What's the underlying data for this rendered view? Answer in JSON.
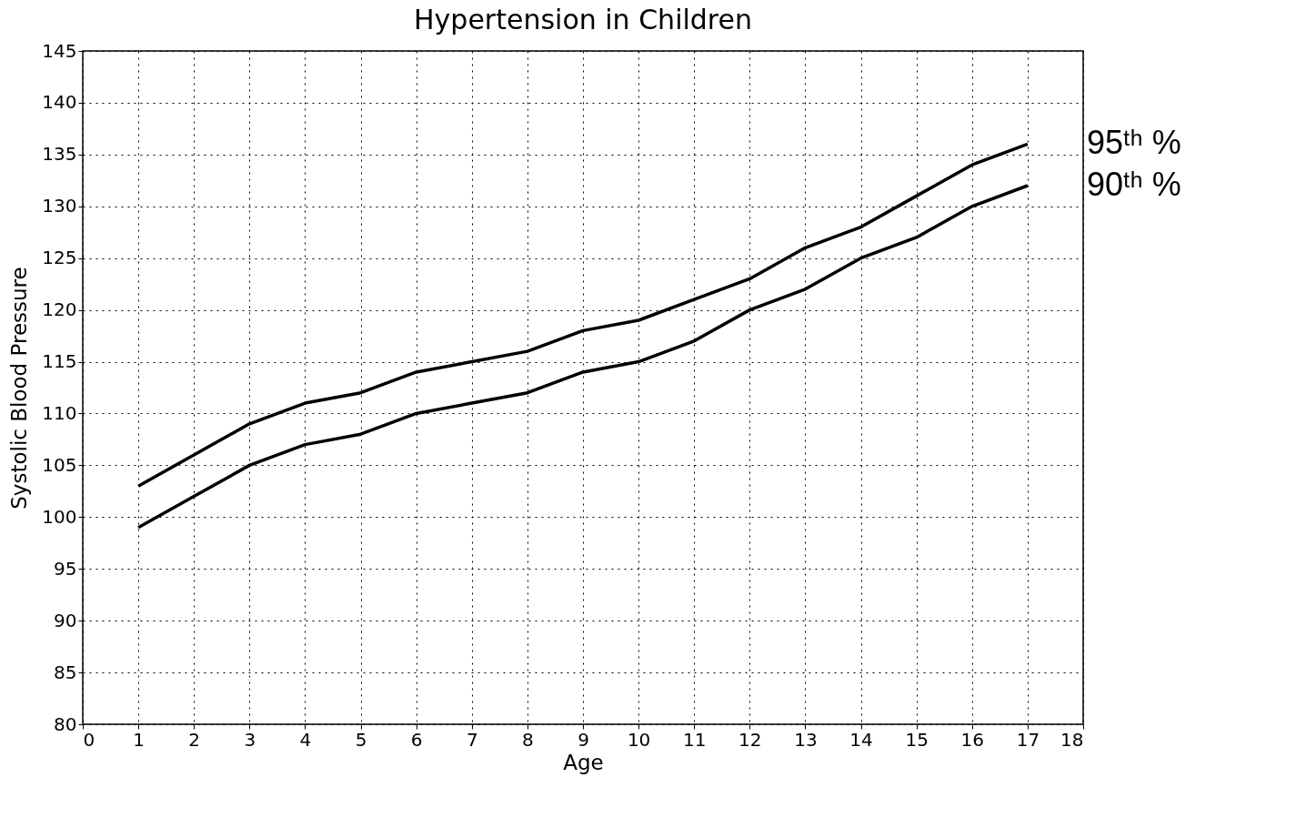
{
  "chart_data": {
    "type": "line",
    "title": "Hypertension in Children",
    "xlabel": "Age",
    "ylabel": "Systolic Blood Pressure",
    "x": [
      1,
      2,
      3,
      4,
      5,
      6,
      7,
      8,
      9,
      10,
      11,
      12,
      13,
      14,
      15,
      16,
      17
    ],
    "series": [
      {
        "name": "95ᵗʰ %",
        "color": "#000000",
        "values": [
          103,
          106,
          109,
          111,
          112,
          114,
          115,
          116,
          118,
          119,
          121,
          123,
          126,
          128,
          131,
          134,
          136
        ]
      },
      {
        "name": "90ᵗʰ %",
        "color": "#000000",
        "values": [
          99,
          102,
          105,
          107,
          108,
          110,
          111,
          112,
          114,
          115,
          117,
          120,
          122,
          125,
          127,
          130,
          132
        ]
      }
    ],
    "xlim": [
      0,
      18
    ],
    "xticks": [
      0,
      1,
      2,
      3,
      4,
      5,
      6,
      7,
      8,
      9,
      10,
      11,
      12,
      13,
      14,
      15,
      16,
      17,
      18
    ],
    "ylim": [
      80,
      145
    ],
    "yticks": [
      80,
      85,
      90,
      95,
      100,
      105,
      110,
      115,
      120,
      125,
      130,
      135,
      140,
      145
    ],
    "grid": true,
    "marker": "none",
    "line_style": "solid"
  }
}
